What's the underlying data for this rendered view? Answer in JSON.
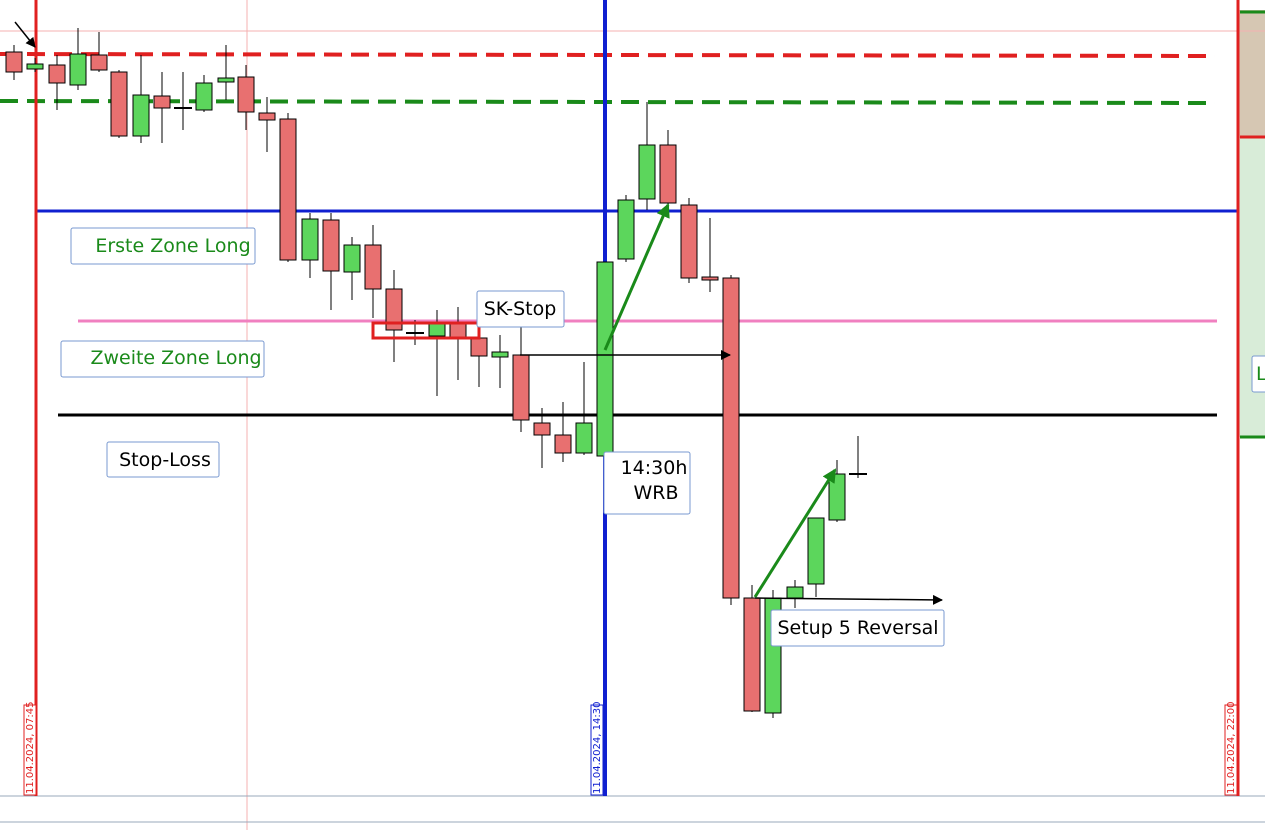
{
  "annotations": {
    "erste_zone": "Erste Zone Long",
    "zweite_zone": "Zweite Zone Long",
    "stop_loss": "Stop-Loss",
    "sk_stop": "SK-Stop",
    "wrb_time": "14:30h",
    "wrb": "WRB",
    "setup": "Setup 5 Reversal",
    "right_edge": "L"
  },
  "time_markers": [
    "11.04.2024, 07:45",
    "11.04.2024, 14:30",
    "11.04.2024, 22:00"
  ]
}
